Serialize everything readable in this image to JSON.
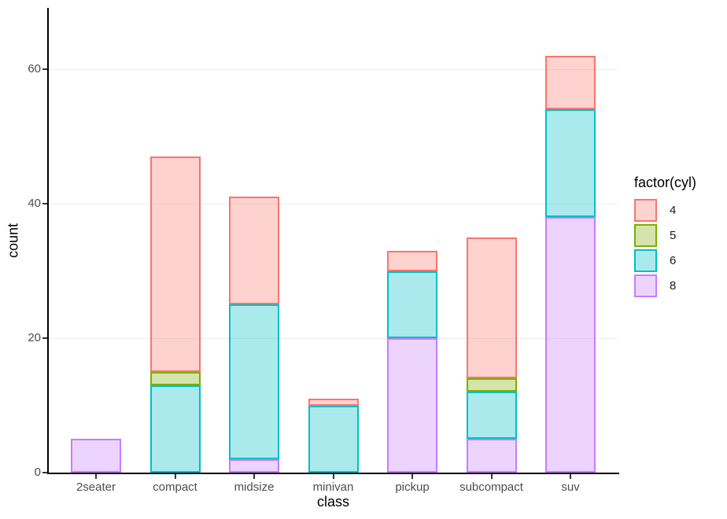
{
  "chart_data": {
    "type": "bar",
    "stacked": true,
    "title": "",
    "xlabel": "class",
    "ylabel": "count",
    "categories": [
      "2seater",
      "compact",
      "midsize",
      "minivan",
      "pickup",
      "subcompact",
      "suv"
    ],
    "series": [
      {
        "name": "4",
        "stroke": "#F8766D",
        "fill": "rgba(248,118,109,0.33)",
        "values": [
          0,
          32,
          16,
          1,
          3,
          21,
          8
        ]
      },
      {
        "name": "5",
        "stroke": "#7CAE00",
        "fill": "rgba(124,174,0,0.33)",
        "values": [
          0,
          2,
          0,
          0,
          0,
          2,
          0
        ]
      },
      {
        "name": "6",
        "stroke": "#00BFC4",
        "fill": "rgba(0,191,196,0.33)",
        "values": [
          0,
          13,
          23,
          10,
          10,
          7,
          16
        ]
      },
      {
        "name": "8",
        "stroke": "#C77CFF",
        "fill": "rgba(199,124,255,0.33)",
        "values": [
          5,
          0,
          2,
          0,
          20,
          5,
          38
        ]
      }
    ],
    "stack_order_bottom_to_top": [
      "8",
      "6",
      "5",
      "4"
    ],
    "totals": [
      5,
      47,
      41,
      11,
      33,
      35,
      62
    ],
    "yticks": [
      0,
      20,
      40,
      60
    ],
    "ylim": [
      0,
      65
    ],
    "grid": "major-y-only",
    "legend": {
      "title": "factor(cyl)",
      "position": "right",
      "entries": [
        "4",
        "5",
        "6",
        "8"
      ]
    },
    "colors": {
      "background": "#ffffff",
      "axis_line": "#000000",
      "tick_label": "#4d4d4d",
      "gridline": "#ededed"
    }
  }
}
